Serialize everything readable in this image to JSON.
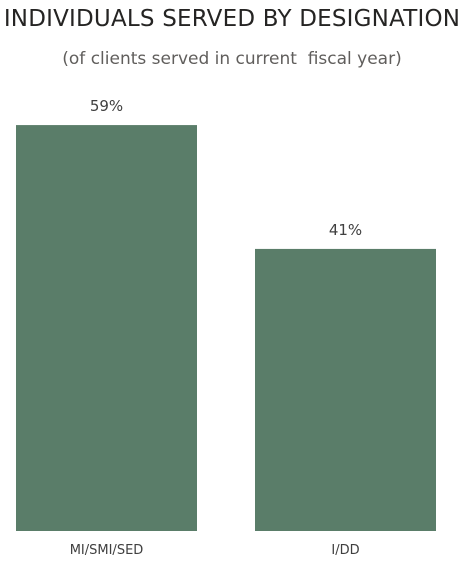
{
  "chart_data": {
    "type": "bar",
    "title": "INDIVIDUALS SERVED BY DESIGNATION",
    "subtitle": "(of clients served in current  fiscal year)",
    "categories": [
      "MI/SMI/SED",
      "I/DD"
    ],
    "values": [
      59,
      41
    ],
    "data_labels": [
      "59%",
      "41%"
    ],
    "bar_color": "#5a7d69",
    "xlabel": "",
    "ylabel": "",
    "grid": false
  }
}
